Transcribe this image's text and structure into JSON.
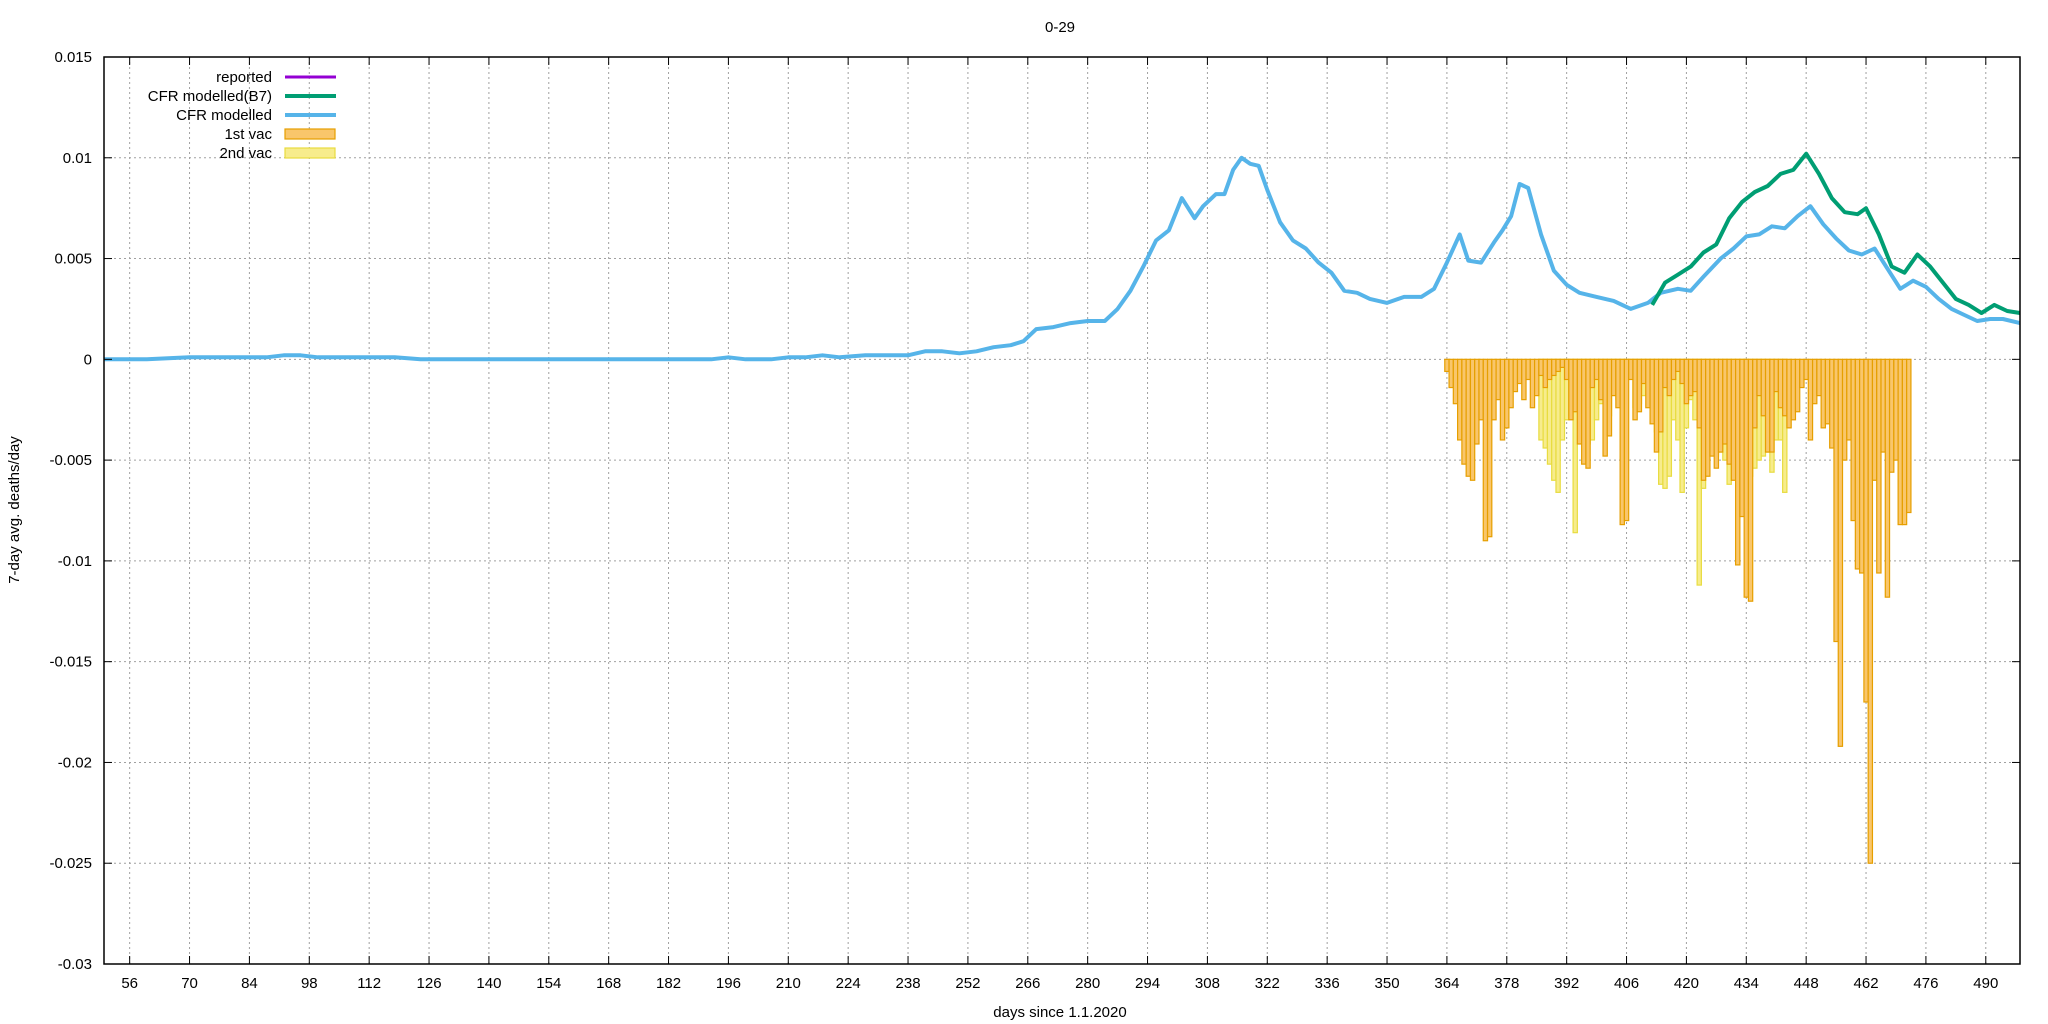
{
  "chart_data": {
    "type": "line",
    "title": "0-29",
    "xlabel": "days since 1.1.2020",
    "ylabel": "7-day avg. deaths/day",
    "xlim": [
      50,
      498
    ],
    "ylim": [
      -0.03,
      0.015
    ],
    "xticks": [
      56,
      70,
      84,
      98,
      112,
      126,
      140,
      154,
      168,
      182,
      196,
      210,
      224,
      238,
      252,
      266,
      280,
      294,
      308,
      322,
      336,
      350,
      364,
      378,
      392,
      406,
      420,
      434,
      448,
      462,
      476,
      490
    ],
    "yticks": [
      0.015,
      0.01,
      0.005,
      0,
      -0.005,
      -0.01,
      -0.015,
      -0.02,
      -0.025,
      -0.03
    ],
    "ytick_labels": [
      "0.015",
      "0.01",
      "0.005",
      "0",
      "-0.005",
      "-0.01",
      "-0.015",
      "-0.02",
      "-0.025",
      "-0.03"
    ],
    "grid": true,
    "legend_position": "top-left",
    "colors": {
      "reported": "#9400d3",
      "cfr_b7": "#009e73",
      "cfr": "#56b4e9",
      "vac1_fill": "#f9c66b",
      "vac1_edge": "#e69f00",
      "vac2_fill": "#f7ec8c",
      "vac2_edge": "#e8dc40"
    },
    "series": [
      {
        "name": "reported",
        "kind": "line",
        "points": []
      },
      {
        "name": "CFR modelled(B7)",
        "kind": "line",
        "points": [
          [
            412,
            0.0027
          ],
          [
            415,
            0.0038
          ],
          [
            418,
            0.0042
          ],
          [
            421,
            0.0046
          ],
          [
            424,
            0.0053
          ],
          [
            427,
            0.0057
          ],
          [
            430,
            0.007
          ],
          [
            433,
            0.0078
          ],
          [
            436,
            0.0083
          ],
          [
            439,
            0.0086
          ],
          [
            442,
            0.0092
          ],
          [
            445,
            0.0094
          ],
          [
            448,
            0.0102
          ],
          [
            451,
            0.0092
          ],
          [
            454,
            0.008
          ],
          [
            457,
            0.0073
          ],
          [
            460,
            0.0072
          ],
          [
            462,
            0.0075
          ],
          [
            465,
            0.0062
          ],
          [
            468,
            0.0046
          ],
          [
            471,
            0.0043
          ],
          [
            474,
            0.0052
          ],
          [
            477,
            0.0046
          ],
          [
            480,
            0.0038
          ],
          [
            483,
            0.003
          ],
          [
            486,
            0.0027
          ],
          [
            489,
            0.0023
          ],
          [
            492,
            0.0027
          ],
          [
            495,
            0.0024
          ],
          [
            498,
            0.0023
          ]
        ]
      },
      {
        "name": "CFR modelled",
        "kind": "line",
        "points": [
          [
            50,
            0
          ],
          [
            60,
            0
          ],
          [
            70,
            0.0001
          ],
          [
            80,
            0.0001
          ],
          [
            88,
            0.0001
          ],
          [
            92,
            0.0002
          ],
          [
            96,
            0.0002
          ],
          [
            100,
            0.0001
          ],
          [
            105,
            0.0001
          ],
          [
            112,
            0.0001
          ],
          [
            118,
            0.0001
          ],
          [
            124,
            0
          ],
          [
            140,
            0
          ],
          [
            160,
            0
          ],
          [
            180,
            0
          ],
          [
            192,
            0
          ],
          [
            196,
            0.0001
          ],
          [
            200,
            0
          ],
          [
            206,
            0
          ],
          [
            210,
            0.0001
          ],
          [
            214,
            0.0001
          ],
          [
            218,
            0.0002
          ],
          [
            222,
            0.0001
          ],
          [
            228,
            0.0002
          ],
          [
            234,
            0.0002
          ],
          [
            238,
            0.0002
          ],
          [
            242,
            0.0004
          ],
          [
            246,
            0.0004
          ],
          [
            250,
            0.0003
          ],
          [
            254,
            0.0004
          ],
          [
            258,
            0.0006
          ],
          [
            262,
            0.0007
          ],
          [
            265,
            0.0009
          ],
          [
            268,
            0.0015
          ],
          [
            272,
            0.0016
          ],
          [
            276,
            0.0018
          ],
          [
            280,
            0.0019
          ],
          [
            284,
            0.0019
          ],
          [
            287,
            0.0025
          ],
          [
            290,
            0.0034
          ],
          [
            293,
            0.0046
          ],
          [
            296,
            0.0059
          ],
          [
            299,
            0.0064
          ],
          [
            302,
            0.008
          ],
          [
            305,
            0.007
          ],
          [
            307,
            0.0076
          ],
          [
            310,
            0.0082
          ],
          [
            312,
            0.0082
          ],
          [
            314,
            0.0094
          ],
          [
            316,
            0.01
          ],
          [
            318,
            0.0097
          ],
          [
            320,
            0.0096
          ],
          [
            322,
            0.0084
          ],
          [
            325,
            0.0068
          ],
          [
            328,
            0.0059
          ],
          [
            331,
            0.0055
          ],
          [
            334,
            0.0048
          ],
          [
            337,
            0.0043
          ],
          [
            340,
            0.0034
          ],
          [
            343,
            0.0033
          ],
          [
            346,
            0.003
          ],
          [
            350,
            0.0028
          ],
          [
            354,
            0.0031
          ],
          [
            358,
            0.0031
          ],
          [
            361,
            0.0035
          ],
          [
            364,
            0.0048
          ],
          [
            367,
            0.0062
          ],
          [
            369,
            0.0049
          ],
          [
            372,
            0.0048
          ],
          [
            375,
            0.0058
          ],
          [
            377,
            0.0064
          ],
          [
            379,
            0.0071
          ],
          [
            381,
            0.0087
          ],
          [
            383,
            0.0085
          ],
          [
            386,
            0.0062
          ],
          [
            389,
            0.0044
          ],
          [
            392,
            0.0037
          ],
          [
            395,
            0.0033
          ],
          [
            399,
            0.0031
          ],
          [
            403,
            0.0029
          ],
          [
            407,
            0.0025
          ],
          [
            411,
            0.0028
          ],
          [
            414,
            0.0033
          ],
          [
            418,
            0.0035
          ],
          [
            421,
            0.0034
          ],
          [
            424,
            0.0041
          ],
          [
            428,
            0.005
          ],
          [
            431,
            0.0055
          ],
          [
            434,
            0.0061
          ],
          [
            437,
            0.0062
          ],
          [
            440,
            0.0066
          ],
          [
            443,
            0.0065
          ],
          [
            446,
            0.0071
          ],
          [
            449,
            0.0076
          ],
          [
            452,
            0.0067
          ],
          [
            455,
            0.006
          ],
          [
            458,
            0.0054
          ],
          [
            461,
            0.0052
          ],
          [
            464,
            0.0055
          ],
          [
            467,
            0.0045
          ],
          [
            470,
            0.0035
          ],
          [
            473,
            0.0039
          ],
          [
            476,
            0.0036
          ],
          [
            479,
            0.003
          ],
          [
            482,
            0.0025
          ],
          [
            485,
            0.0022
          ],
          [
            488,
            0.0019
          ],
          [
            491,
            0.002
          ],
          [
            494,
            0.002
          ],
          [
            498,
            0.0018
          ]
        ]
      },
      {
        "name": "1st vac",
        "kind": "bars",
        "x_start": 364,
        "values": [
          -0.0006,
          -0.0014,
          -0.0022,
          -0.004,
          -0.0052,
          -0.0058,
          -0.006,
          -0.0042,
          -0.003,
          -0.009,
          -0.0088,
          -0.003,
          -0.002,
          -0.004,
          -0.0034,
          -0.0024,
          -0.0016,
          -0.0012,
          -0.002,
          -0.001,
          -0.0024,
          -0.0018,
          -0.0008,
          -0.0014,
          -0.001,
          -0.0008,
          -0.0006,
          -0.0004,
          -0.001,
          -0.003,
          -0.0026,
          -0.0042,
          -0.0052,
          -0.0054,
          -0.0014,
          -0.001,
          -0.002,
          -0.0048,
          -0.0038,
          -0.0018,
          -0.0024,
          -0.0082,
          -0.008,
          -0.001,
          -0.003,
          -0.0026,
          -0.0012,
          -0.0024,
          -0.0032,
          -0.0046,
          -0.0036,
          -0.0014,
          -0.0018,
          -0.001,
          -0.0006,
          -0.0012,
          -0.0022,
          -0.0018,
          -0.0016,
          -0.0034,
          -0.006,
          -0.0058,
          -0.0048,
          -0.0054,
          -0.0046,
          -0.0042,
          -0.0052,
          -0.006,
          -0.0102,
          -0.0078,
          -0.0118,
          -0.012,
          -0.0034,
          -0.0018,
          -0.0028,
          -0.0046,
          -0.0046,
          -0.0016,
          -0.0024,
          -0.0028,
          -0.0034,
          -0.003,
          -0.0026,
          -0.0014,
          -0.001,
          -0.004,
          -0.0022,
          -0.0018,
          -0.0034,
          -0.0032,
          -0.0044,
          -0.014,
          -0.0192,
          -0.005,
          -0.004,
          -0.008,
          -0.0104,
          -0.0106,
          -0.017,
          -0.025,
          -0.006,
          -0.0106,
          -0.0046,
          -0.0118,
          -0.0056,
          -0.005,
          -0.0082,
          -0.0082,
          -0.0076
        ]
      },
      {
        "name": "2nd vac",
        "kind": "bars",
        "x_start": 386,
        "values": [
          -0.004,
          -0.0044,
          -0.0052,
          -0.006,
          -0.0066,
          -0.004,
          -0.003,
          -0.0028,
          -0.0086,
          -0.002,
          -0.001,
          -0.0042,
          -0.004,
          -0.003,
          -0.0022,
          -0.0012,
          -0.0028,
          -0.0008,
          -0.002,
          -0.0014,
          -0.001,
          -0.0006,
          -0.0024,
          -0.0022,
          -0.0018,
          -0.0012,
          -0.0016,
          -0.0036,
          -0.0062,
          -0.0064,
          -0.0058,
          -0.003,
          -0.004,
          -0.0066,
          -0.0034,
          -0.002,
          -0.003,
          -0.0112,
          -0.0064,
          -0.004,
          -0.0042,
          -0.0048,
          -0.0046,
          -0.005,
          -0.0062,
          -0.0044,
          -0.0052,
          -0.0038,
          -0.006,
          -0.0058,
          -0.0054,
          -0.005,
          -0.0048,
          -0.0046,
          -0.0056,
          -0.004,
          -0.004,
          -0.0066
        ]
      }
    ]
  }
}
